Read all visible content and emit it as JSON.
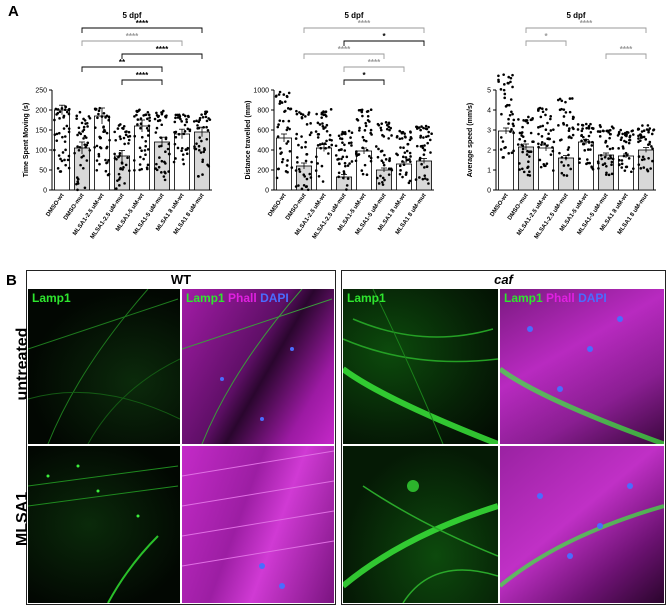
{
  "panels": {
    "a": "A",
    "b": "B"
  },
  "chart_data": [
    {
      "type": "bar",
      "title": "5 dpf",
      "ylabel": "Time Spent Moving (s)",
      "ylim": [
        0,
        250
      ],
      "yticks": [
        0,
        50,
        100,
        150,
        200,
        250
      ],
      "categories": [
        "DMSO-wt",
        "DMSO-mut",
        "MLSA1-2.5 uM-wt",
        "MLSA1-2.5 uM-mut",
        "MLSA1-5 uM-wt",
        "MLSA1-5 uM-mut",
        "MLSA1 8 uM-wt",
        "MLSA1 8 uM-mut"
      ],
      "values": [
        200,
        105,
        185,
        85,
        160,
        120,
        140,
        145
      ],
      "errors": [
        12,
        15,
        20,
        14,
        15,
        12,
        12,
        12
      ],
      "spread": [
        [
          40,
          210
        ],
        [
          0,
          195
        ],
        [
          30,
          205
        ],
        [
          0,
          165
        ],
        [
          40,
          205
        ],
        [
          20,
          200
        ],
        [
          60,
          195
        ],
        [
          30,
          200
        ]
      ],
      "significance": [
        {
          "from": 1,
          "to": 7,
          "label": "****",
          "color": "#000000"
        },
        {
          "from": 1,
          "to": 6,
          "label": "****",
          "color": "#9a9a9a"
        },
        {
          "from": 3,
          "to": 7,
          "label": "****",
          "color": "#000000"
        },
        {
          "from": 1,
          "to": 5,
          "label": "**",
          "color": "#000000"
        },
        {
          "from": 3,
          "to": 5,
          "label": "****",
          "color": "#000000"
        }
      ],
      "colors": {
        "wt": "#ffffff",
        "mut": "#d8d8d8"
      }
    },
    {
      "type": "bar",
      "title": "5 dpf",
      "ylabel": "Distance travelled (mm)",
      "ylim": [
        0,
        1000
      ],
      "yticks": [
        0,
        200,
        400,
        600,
        800,
        1000
      ],
      "categories": [
        "DMSO-wt",
        "DMSO-mut",
        "MLSA1-2.5 uM-wt",
        "MLSA1-2.5 uM-mut",
        "MLSA1-5 uM-wt",
        "MLSA1-5 uM-mut",
        "MLSA1 8 uM-wt",
        "MLSA1 8 uM-mut"
      ],
      "values": [
        520,
        240,
        420,
        130,
        390,
        200,
        260,
        290
      ],
      "errors": [
        40,
        30,
        35,
        25,
        30,
        20,
        20,
        25
      ],
      "spread": [
        [
          80,
          980
        ],
        [
          0,
          800
        ],
        [
          60,
          840
        ],
        [
          0,
          600
        ],
        [
          120,
          820
        ],
        [
          40,
          690
        ],
        [
          60,
          590
        ],
        [
          60,
          640
        ]
      ],
      "significance": [
        {
          "from": 1,
          "to": 7,
          "label": "****",
          "color": "#9a9a9a"
        },
        {
          "from": 3,
          "to": 7,
          "label": "*",
          "color": "#000000"
        },
        {
          "from": 1,
          "to": 5,
          "label": "****",
          "color": "#9a9a9a"
        },
        {
          "from": 3,
          "to": 6,
          "label": "****",
          "color": "#9a9a9a"
        },
        {
          "from": 3,
          "to": 5,
          "label": "*",
          "color": "#000000"
        }
      ],
      "colors": {
        "wt": "#ffffff",
        "mut": "#d8d8d8"
      }
    },
    {
      "type": "bar",
      "title": "5 dpf",
      "ylabel": "Average speed (mm/s)",
      "ylim": [
        0,
        5
      ],
      "yticks": [
        0,
        1,
        2,
        3,
        4,
        5
      ],
      "categories": [
        "DMSO-wt",
        "DMSO-mut",
        "MLSA1-2.5 uM-wt",
        "MLSA1-2.5 uM-mut",
        "MLSA1-5 uM-wt",
        "MLSA1-5 uM-mut",
        "MLSA1 8 uM-wt",
        "MLSA1 8 uM-mut"
      ],
      "values": [
        2.95,
        2.15,
        2.1,
        1.6,
        2.4,
        1.75,
        1.7,
        2.0
      ],
      "errors": [
        0.15,
        0.15,
        0.15,
        0.12,
        0.12,
        0.1,
        0.1,
        0.12
      ],
      "spread": [
        [
          1.6,
          5.8
        ],
        [
          0.6,
          3.7
        ],
        [
          0.8,
          4.1
        ],
        [
          0.4,
          4.6
        ],
        [
          1.0,
          3.3
        ],
        [
          0.7,
          3.3
        ],
        [
          0.9,
          3.0
        ],
        [
          0.8,
          3.3
        ]
      ],
      "significance": [
        {
          "from": 1,
          "to": 7,
          "label": "****",
          "color": "#9a9a9a"
        },
        {
          "from": 1,
          "to": 3,
          "label": "*",
          "color": "#9a9a9a"
        },
        {
          "from": 5,
          "to": 7,
          "label": "****",
          "color": "#9a9a9a"
        }
      ],
      "colors": {
        "wt": "#ffffff",
        "mut": "#d8d8d8"
      }
    }
  ],
  "microscopy": {
    "groups": [
      {
        "title": "WT",
        "italic": false
      },
      {
        "title": "caf",
        "italic": true
      }
    ],
    "rows": [
      "untreated",
      "MLSA1"
    ],
    "label_green": "Lamp1",
    "label_merge": [
      "Lamp1",
      "Phall",
      "DAPI"
    ],
    "colors": {
      "green": "#2ee62e",
      "magenta": "#e020e0",
      "blue": "#4a6cff"
    }
  }
}
